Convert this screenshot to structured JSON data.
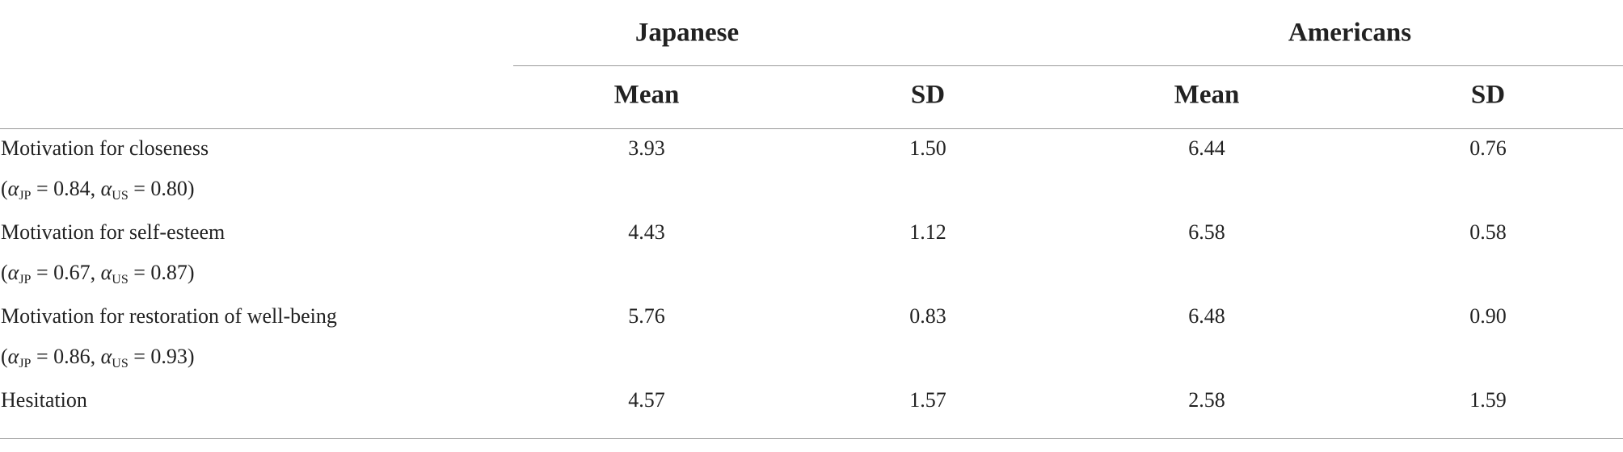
{
  "table": {
    "groups": [
      "Japanese",
      "Americans"
    ],
    "columns": [
      "Mean",
      "SD",
      "Mean",
      "SD"
    ],
    "rows": [
      {
        "label": "Motivation for closeness",
        "note": [
          {
            "t": "("
          },
          {
            "i": "α"
          },
          {
            "sub": "JP"
          },
          {
            "t": " = 0.84, "
          },
          {
            "i": "α"
          },
          {
            "sub": "US"
          },
          {
            "t": " = 0.80)"
          }
        ],
        "values": [
          "3.93",
          "1.50",
          "6.44",
          "0.76"
        ]
      },
      {
        "label": "Motivation for self-esteem",
        "note": [
          {
            "t": "("
          },
          {
            "i": "α"
          },
          {
            "sub": "JP"
          },
          {
            "t": " = 0.67, "
          },
          {
            "i": "α"
          },
          {
            "sub": "US"
          },
          {
            "t": " = 0.87)"
          }
        ],
        "values": [
          "4.43",
          "1.12",
          "6.58",
          "0.58"
        ]
      },
      {
        "label": "Motivation for restoration of well-being",
        "note": [
          {
            "t": "("
          },
          {
            "i": "α"
          },
          {
            "sub": "JP"
          },
          {
            "t": " = 0.86, "
          },
          {
            "i": "α"
          },
          {
            "sub": "US"
          },
          {
            "t": " = 0.93)"
          }
        ],
        "values": [
          "5.76",
          "0.83",
          "6.48",
          "0.90"
        ]
      },
      {
        "label": "Hesitation",
        "values": [
          "4.57",
          "1.57",
          "2.58",
          "1.59"
        ]
      }
    ]
  }
}
